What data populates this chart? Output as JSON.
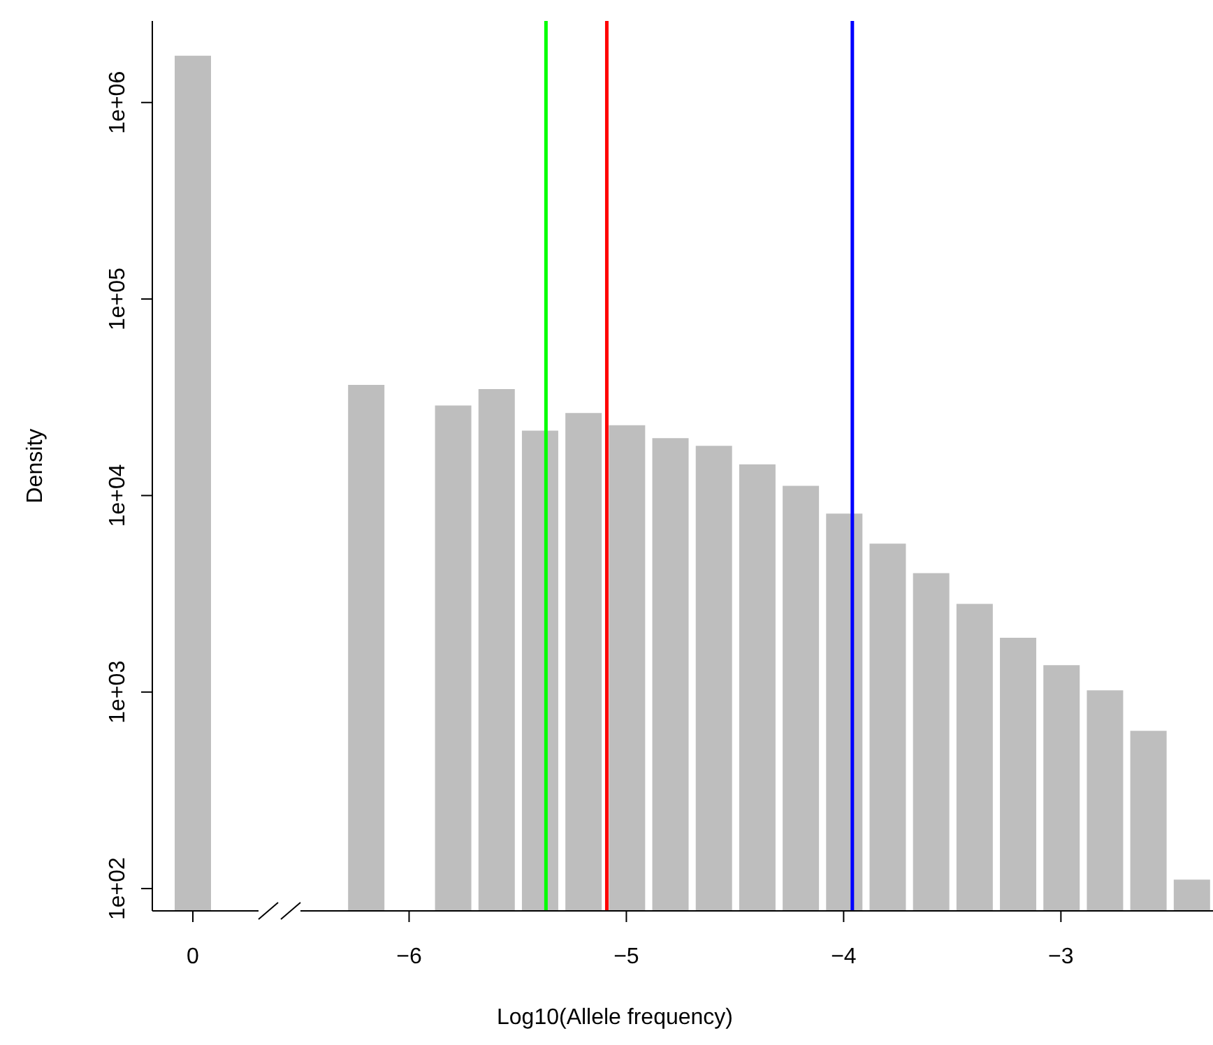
{
  "chart_data": [
    {
      "type": "bar",
      "categories": [
        "0"
      ],
      "values": [
        1730000
      ],
      "color": "#bebebe",
      "ylabel": "Density",
      "log": "y",
      "ylim": [
        77,
        2600000
      ],
      "yticks": [
        {
          "value": 100,
          "label": "1e+02"
        },
        {
          "value": 1000,
          "label": "1e+03"
        },
        {
          "value": 10000,
          "label": "1e+04"
        },
        {
          "value": 100000,
          "label": "1e+05"
        },
        {
          "value": 1000000,
          "label": "1e+06"
        }
      ]
    },
    {
      "type": "bar",
      "x": [
        -6.2,
        -5.8,
        -5.6,
        -5.4,
        -5.2,
        -5.0,
        -4.8,
        -4.6,
        -4.4,
        -4.2,
        -4.0,
        -3.8,
        -3.6,
        -3.4,
        -3.2,
        -3.0,
        -2.8,
        -2.6,
        -2.4
      ],
      "values": [
        36600,
        28700,
        34800,
        21400,
        26300,
        22800,
        19600,
        17900,
        14400,
        11200,
        8100,
        5690,
        4030,
        2810,
        1890,
        1370,
        1020,
        635,
        111
      ],
      "color": "#bebebe",
      "xlabel": "Log10(Allele frequency)",
      "log": "y",
      "ylim": [
        77,
        2600000
      ],
      "xlim": [
        -6.5,
        -2.3
      ],
      "xticks": [
        {
          "value": -6,
          "label": "−6"
        },
        {
          "value": -5,
          "label": "−5"
        },
        {
          "value": -4,
          "label": "−4"
        },
        {
          "value": -3,
          "label": "−3"
        }
      ],
      "tick_labels": "x",
      "ref_lines": [
        {
          "axis": "x",
          "value": -5.37,
          "color": "#00ff00"
        },
        {
          "axis": "x",
          "value": -5.09,
          "color": "#ff0000"
        },
        {
          "axis": "x",
          "value": -3.96,
          "color": "#0000ff"
        }
      ]
    }
  ]
}
